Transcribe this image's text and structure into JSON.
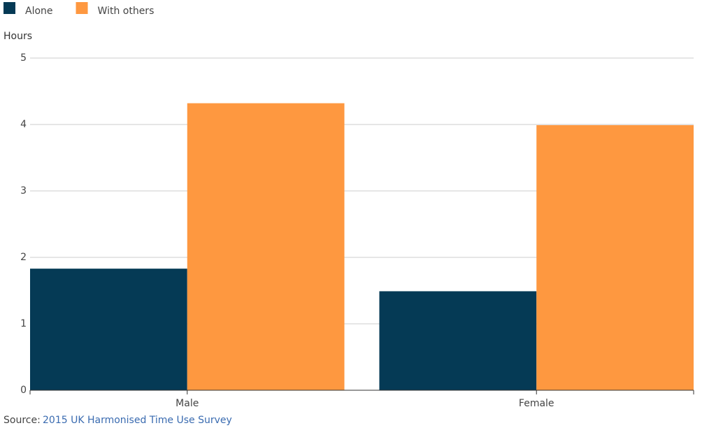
{
  "chart_data": {
    "type": "bar",
    "y_label": "Hours",
    "categories": [
      "Male",
      "Female"
    ],
    "series": [
      {
        "name": "Alone",
        "color": "#053a55",
        "values": [
          1.83,
          1.49
        ]
      },
      {
        "name": "With others",
        "color": "#fe9840",
        "values": [
          4.32,
          3.99
        ]
      }
    ],
    "ylim": [
      0,
      5
    ],
    "yticks": [
      0,
      1,
      2,
      3,
      4,
      5
    ],
    "grid": true,
    "source_label": "Source:",
    "source_link": "2015 UK Harmonised Time Use Survey"
  }
}
